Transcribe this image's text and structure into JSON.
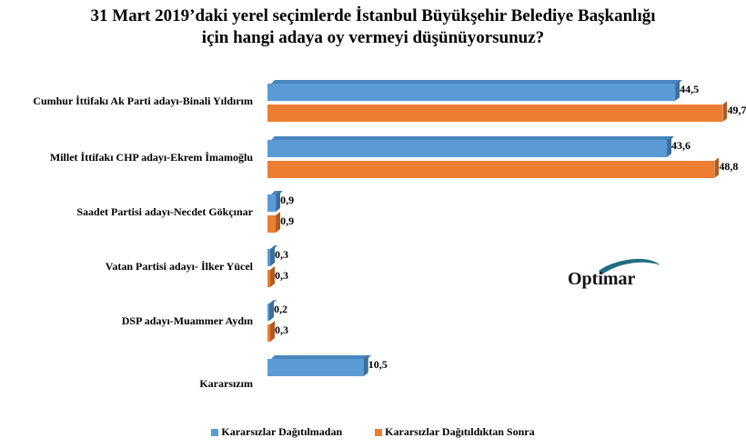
{
  "title": {
    "line1": "31 Mart 2019’daki yerel seçimlerde İstanbul  Büyükşehir Belediye Başkanlığı",
    "line2": "için hangi  adaya oy vermeyi düşünüyorsunuz?"
  },
  "colors": {
    "series1": "#5b9bd5",
    "series2": "#ed7d31",
    "logo_swoosh": "#1f6e80"
  },
  "logo": {
    "text": "Optimar"
  },
  "legend": {
    "items": [
      {
        "label": "Kararsızlar Dağıtılmadan",
        "color": "#5b9bd5"
      },
      {
        "label": "Kararsızlar Dağıtıldıktan Sonra",
        "color": "#ed7d31"
      }
    ]
  },
  "chart_data": {
    "type": "bar",
    "orientation": "horizontal",
    "title": "31 Mart 2019’daki yerel seçimlerde İstanbul Büyükşehir Belediye Başkanlığı için hangi adaya oy vermeyi düşünüyorsunuz?",
    "categories": [
      "Cumhur İttifakı Ak Parti adayı-Binali Yıldırım",
      "Millet İttifakı CHP adayı-Ekrem İmamoğlu",
      "Saadet Partisi adayı-Necdet Gökçınar",
      "Vatan Partisi adayı- İlker Yücel",
      "DSP adayı-Muammer Aydın",
      "Kararsızım"
    ],
    "series": [
      {
        "name": "Kararsızlar Dağıtılmadan",
        "values": [
          44.5,
          43.6,
          0.9,
          0.3,
          0.2,
          10.5
        ],
        "labels": [
          "44,5",
          "43,6",
          "0,9",
          "0,3",
          "0,2",
          "10,5"
        ]
      },
      {
        "name": "Kararsızlar Dağıtıldıktan Sonra",
        "values": [
          49.7,
          48.8,
          0.9,
          0.3,
          0.3,
          null
        ],
        "labels": [
          "49,7",
          "48,8",
          "0,9",
          "0,3",
          "0,3",
          ""
        ]
      }
    ],
    "xlabel": "",
    "ylabel": "",
    "xlim": [
      0,
      52
    ],
    "grid": false,
    "legend_position": "bottom",
    "style": "3d-bar"
  }
}
